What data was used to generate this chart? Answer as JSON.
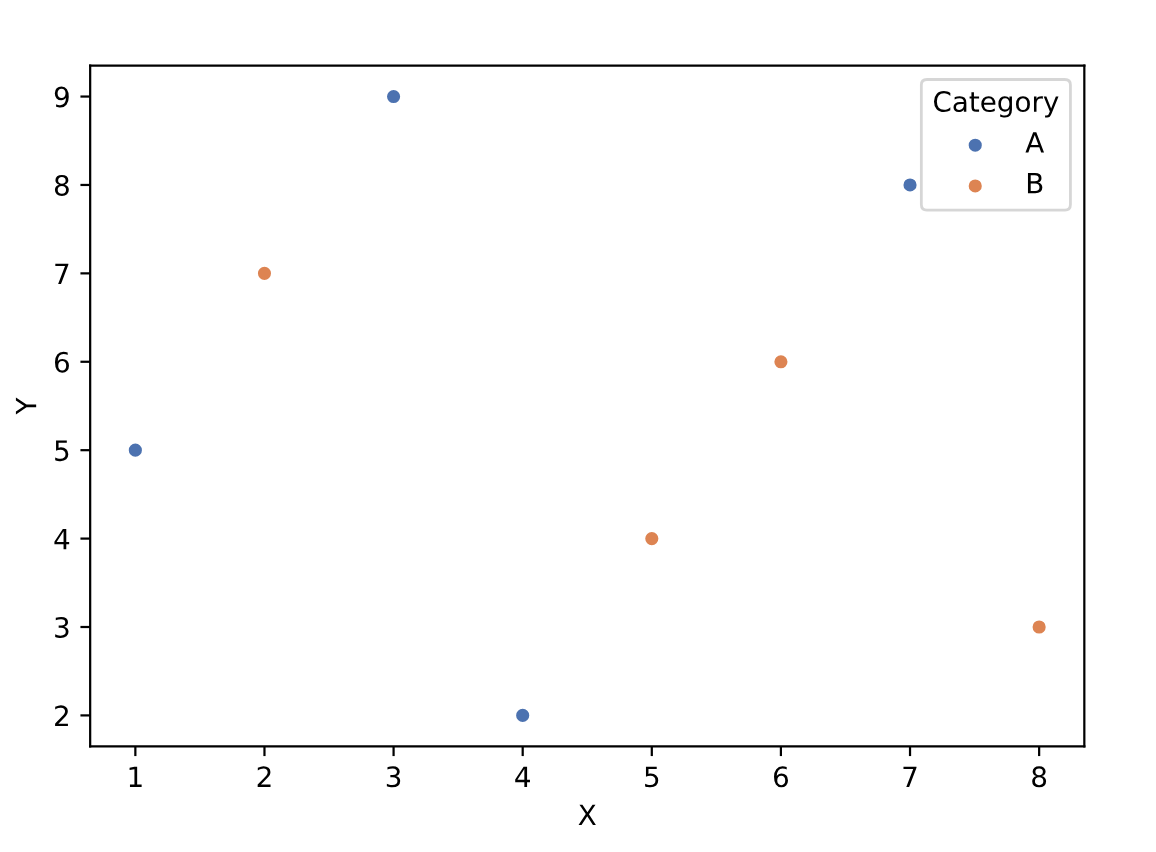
{
  "chart_data": {
    "type": "scatter",
    "xlabel": "X",
    "ylabel": "Y",
    "legend_title": "Category",
    "legend": "top right",
    "marker": "circle",
    "grid": false,
    "xlim": [
      0.65,
      8.35
    ],
    "ylim": [
      1.65,
      9.35
    ],
    "xticks": [
      1,
      2,
      3,
      4,
      5,
      6,
      7,
      8
    ],
    "yticks": [
      2,
      3,
      4,
      5,
      6,
      7,
      8,
      9
    ],
    "series": [
      {
        "name": "A",
        "color": "#4c72b0",
        "x": [
          1,
          3,
          4,
          7
        ],
        "values": [
          5,
          9,
          2,
          8
        ]
      },
      {
        "name": "B",
        "color": "#dd8452",
        "x": [
          2,
          5,
          6,
          8
        ],
        "values": [
          7,
          4,
          6,
          3
        ]
      }
    ]
  }
}
